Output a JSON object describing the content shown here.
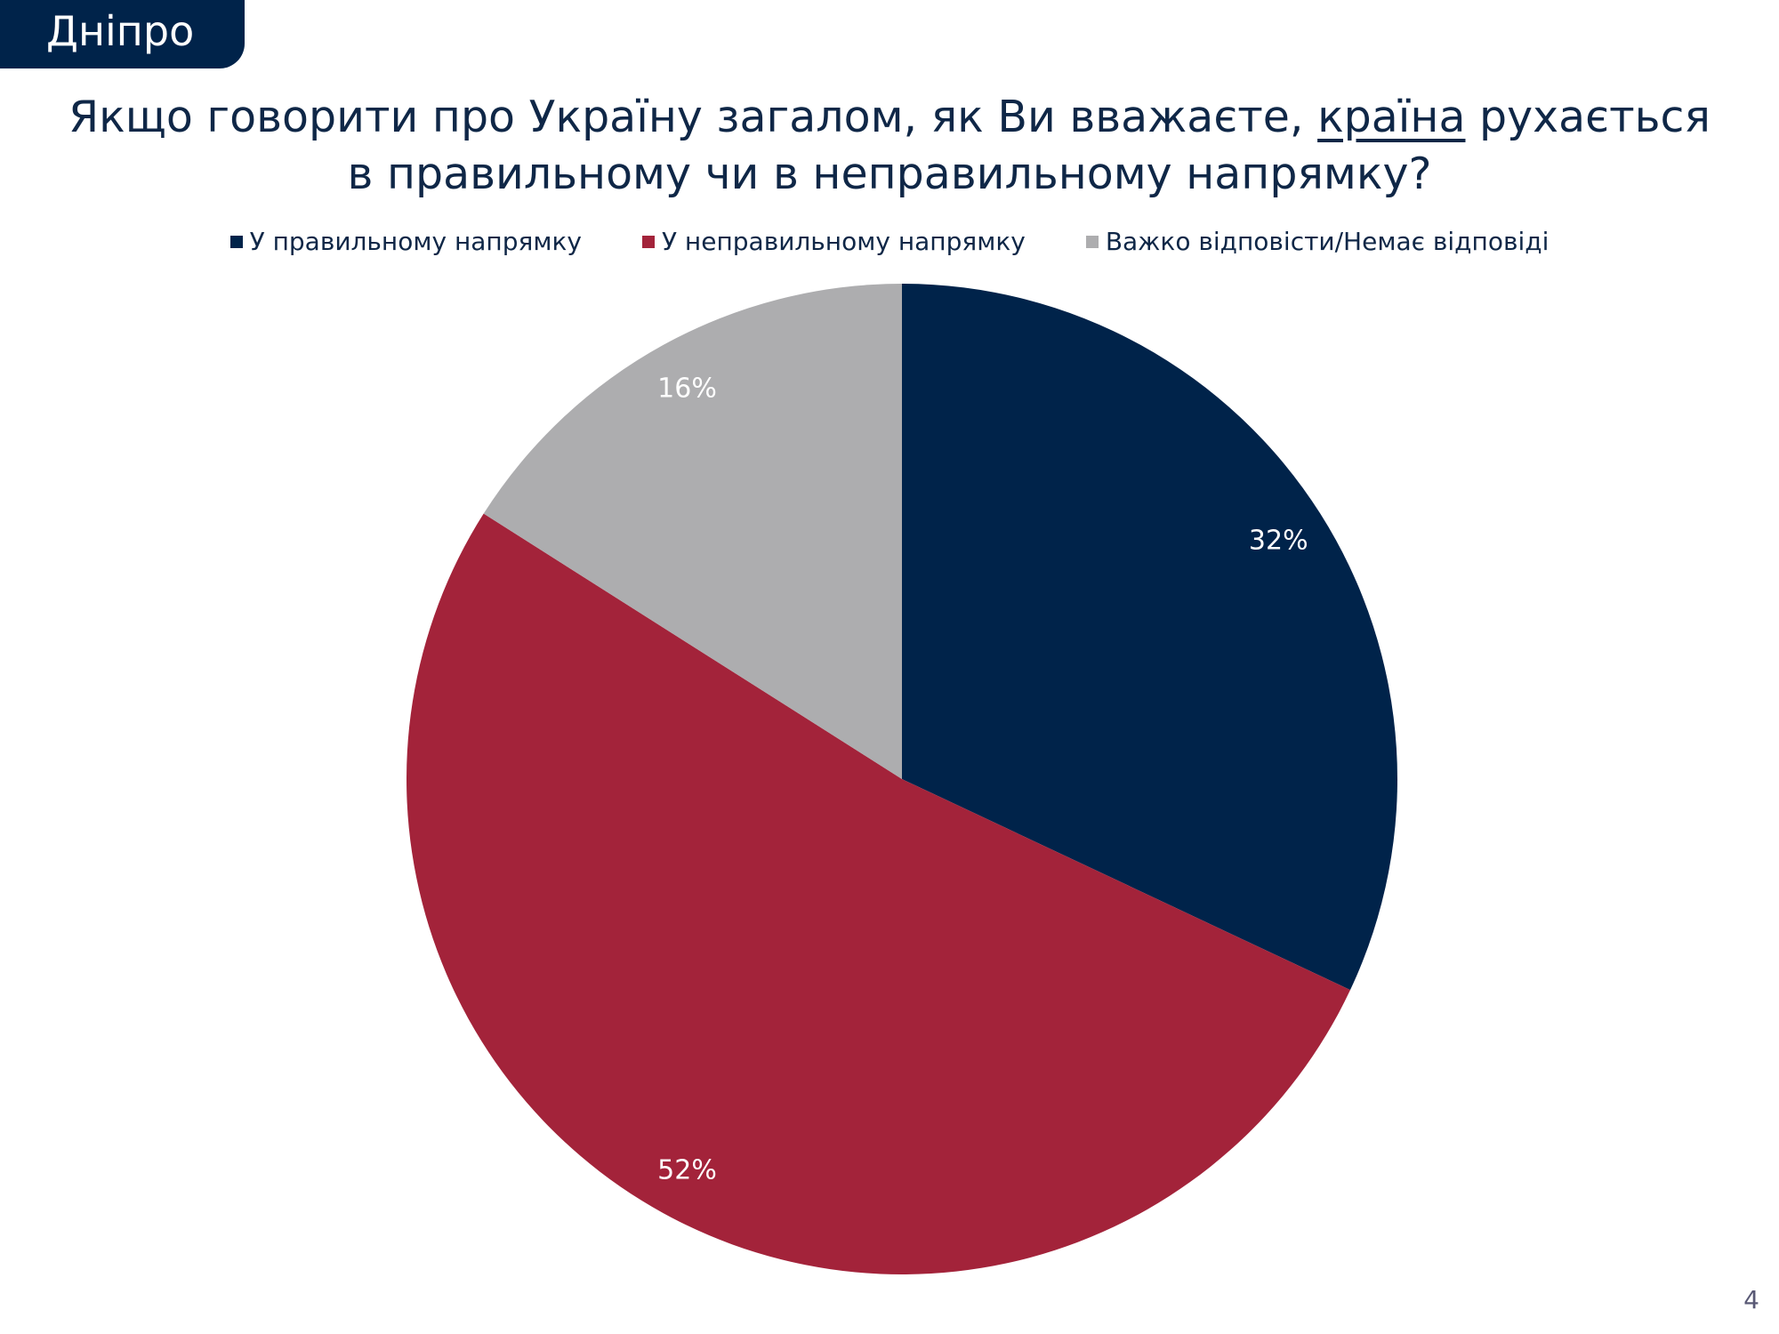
{
  "header": {
    "region_tab": "Дніпро"
  },
  "title": {
    "line1_before": "Якщо говорити про Україну загалом, як Ви вважаєте, ",
    "line1_underlined": "країна",
    "line1_after": " рухається",
    "line2": "в правильному чи в неправильному напрямку?"
  },
  "page_number": "4",
  "chart_data": {
    "type": "pie",
    "title": "Якщо говорити про Україну загалом, як Ви вважаєте, країна рухається в правильному чи в неправильному напрямку?",
    "legend_position": "top",
    "series": [
      {
        "name": "У правильному напрямку",
        "value": 32,
        "label": "32%",
        "color": "#00234a"
      },
      {
        "name": "У неправильному напрямку",
        "value": 52,
        "label": "52%",
        "color": "#a3233a"
      },
      {
        "name": "Важко відповісти/Немає відповіді",
        "value": 16,
        "label": "16%",
        "color": "#adadaf"
      }
    ]
  }
}
